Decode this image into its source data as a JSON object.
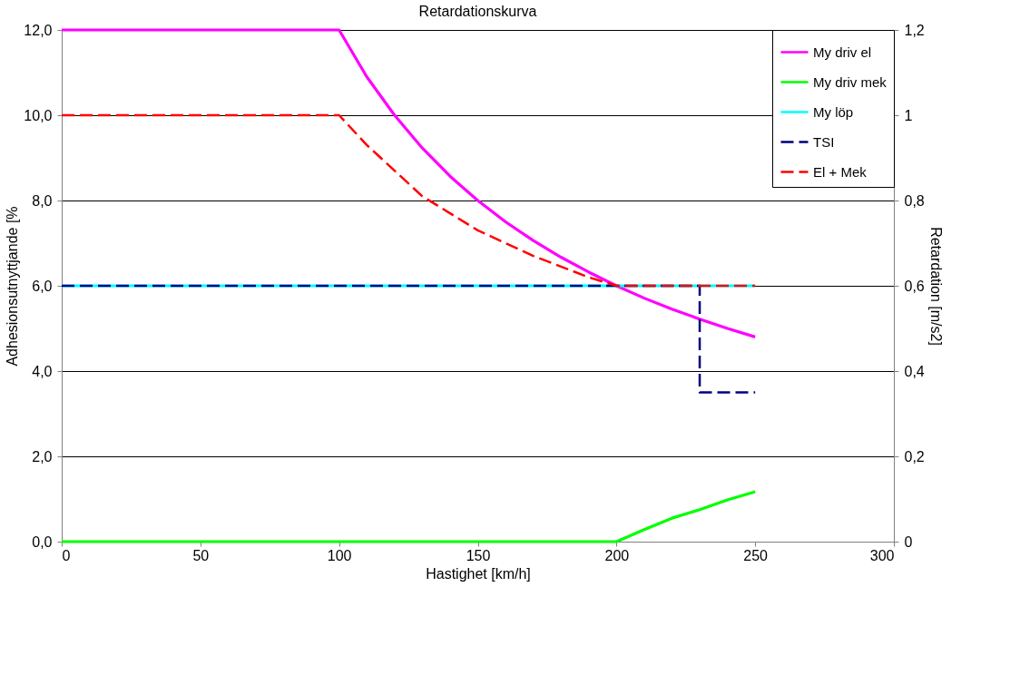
{
  "chart_data": {
    "type": "line",
    "title": "Retardationskurva",
    "xlabel": "Hastighet [km/h]",
    "ylabel": "Adhesionsutnyttjande [%",
    "y2label": "Retardation [m/s2]",
    "xlim": [
      0,
      300
    ],
    "xticks": [
      0,
      50,
      100,
      150,
      200,
      250,
      300
    ],
    "ylim": [
      0,
      12
    ],
    "yticks": [
      {
        "value": 0,
        "label": "0,0"
      },
      {
        "value": 2,
        "label": "2,0"
      },
      {
        "value": 4,
        "label": "4,0"
      },
      {
        "value": 6,
        "label": "6,0"
      },
      {
        "value": 8,
        "label": "8,0"
      },
      {
        "value": 10,
        "label": "10,0"
      },
      {
        "value": 12,
        "label": "12,0"
      }
    ],
    "y2lim": [
      0,
      1.2
    ],
    "y2ticks": [
      0,
      {
        "value": 0.2,
        "label": "0,2"
      },
      {
        "value": 0.4,
        "label": "0,4"
      },
      {
        "value": 0.6,
        "label": "0,6"
      },
      {
        "value": 0.8,
        "label": "0,8"
      },
      1,
      {
        "value": 1.2,
        "label": "1,2"
      }
    ],
    "grid": "y",
    "legend": "top right",
    "marker": "none",
    "series": [
      {
        "name": "My driv el",
        "color": "#ff00ff",
        "line_style": "solid",
        "x": [
          0,
          10,
          20,
          30,
          40,
          50,
          60,
          70,
          80,
          90,
          100,
          110,
          120,
          130,
          140,
          150,
          160,
          170,
          180,
          190,
          200,
          210,
          220,
          230,
          240,
          250
        ],
        "values": [
          12,
          12,
          12,
          12,
          12,
          12,
          12,
          12,
          12,
          12,
          12,
          10.9,
          10.0,
          9.23,
          8.57,
          8.0,
          7.5,
          7.06,
          6.67,
          6.32,
          6.0,
          5.71,
          5.45,
          5.22,
          5.0,
          4.8
        ]
      },
      {
        "name": "My driv mek",
        "color": "#00ff00",
        "line_style": "solid",
        "x": [
          0,
          200,
          210,
          220,
          230,
          240,
          250
        ],
        "values": [
          0,
          0,
          0.28,
          0.55,
          0.75,
          0.98,
          1.17
        ]
      },
      {
        "name": "My löp",
        "color": "#00ffff",
        "line_style": "solid",
        "x": [
          0,
          250
        ],
        "values": [
          6,
          6
        ]
      },
      {
        "name": "TSI",
        "color": "#000080",
        "line_style": "dashed",
        "axis": "y2",
        "x": [
          0,
          230,
          230,
          250
        ],
        "values": [
          0.6,
          0.6,
          0.35,
          0.35
        ]
      },
      {
        "name": "El + Mek",
        "color": "#ff0000",
        "line_style": "dashed",
        "axis": "y2",
        "x": [
          0,
          100,
          110,
          120,
          130,
          140,
          150,
          160,
          170,
          180,
          190,
          200,
          210,
          220,
          230,
          240,
          250
        ],
        "values": [
          1,
          1,
          0.93,
          0.87,
          0.81,
          0.77,
          0.73,
          0.7,
          0.67,
          0.645,
          0.62,
          0.6,
          0.6,
          0.6,
          0.6,
          0.6,
          0.6
        ]
      }
    ]
  }
}
